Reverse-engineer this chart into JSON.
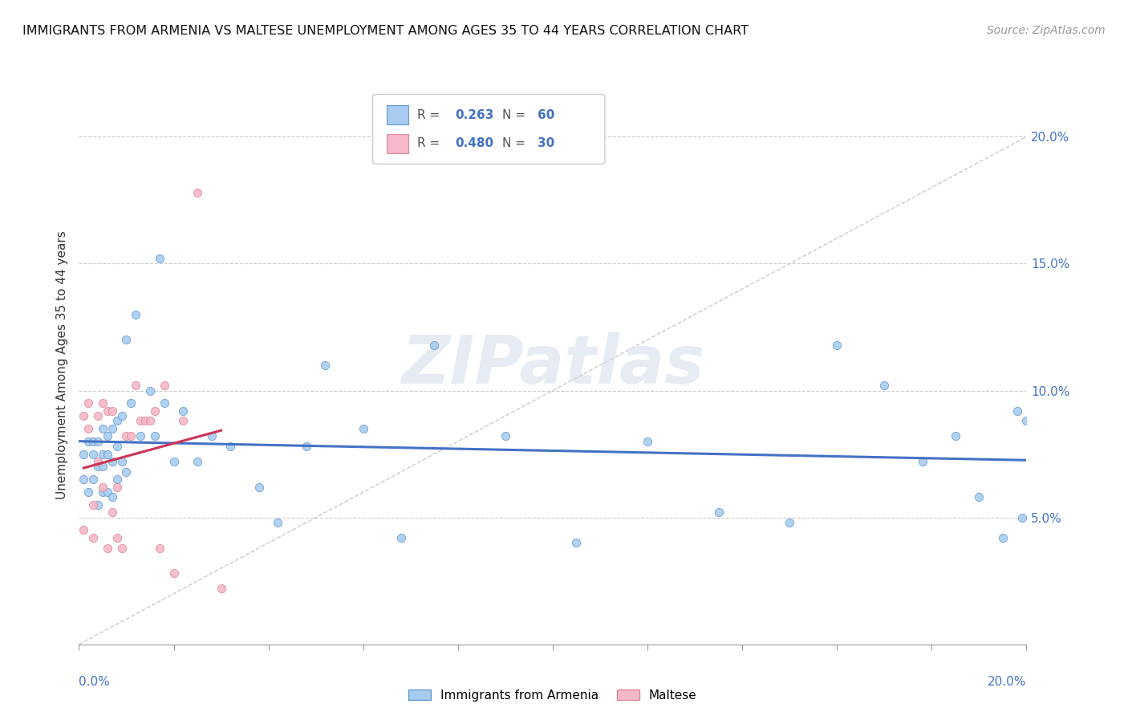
{
  "title": "IMMIGRANTS FROM ARMENIA VS MALTESE UNEMPLOYMENT AMONG AGES 35 TO 44 YEARS CORRELATION CHART",
  "source": "Source: ZipAtlas.com",
  "ylabel": "Unemployment Among Ages 35 to 44 years",
  "xlim": [
    0.0,
    0.2
  ],
  "ylim": [
    0.0,
    0.22
  ],
  "yticks": [
    0.05,
    0.1,
    0.15,
    0.2
  ],
  "ytick_labels": [
    "5.0%",
    "10.0%",
    "15.0%",
    "20.0%"
  ],
  "xticks": [
    0.0,
    0.02,
    0.04,
    0.06,
    0.08,
    0.1,
    0.12,
    0.14,
    0.16,
    0.18,
    0.2
  ],
  "color_armenia": "#A8CCF0",
  "color_maltese": "#F5B8C8",
  "color_armenia_edge": "#6699CC",
  "color_maltese_edge": "#DD8899",
  "color_diag": "#CCCCCC",
  "color_trend_armenia": "#4472C4",
  "color_trend_maltese": "#CC3355",
  "watermark": "ZIPatlas",
  "armenia_x": [
    0.001,
    0.001,
    0.002,
    0.002,
    0.003,
    0.003,
    0.003,
    0.004,
    0.004,
    0.004,
    0.005,
    0.005,
    0.005,
    0.005,
    0.006,
    0.006,
    0.006,
    0.007,
    0.007,
    0.007,
    0.008,
    0.008,
    0.008,
    0.009,
    0.009,
    0.01,
    0.01,
    0.011,
    0.012,
    0.013,
    0.015,
    0.016,
    0.017,
    0.018,
    0.02,
    0.022,
    0.025,
    0.028,
    0.032,
    0.038,
    0.042,
    0.048,
    0.052,
    0.06,
    0.068,
    0.075,
    0.09,
    0.105,
    0.12,
    0.135,
    0.15,
    0.16,
    0.17,
    0.178,
    0.185,
    0.19,
    0.195,
    0.198,
    0.199,
    0.2
  ],
  "armenia_y": [
    0.065,
    0.075,
    0.06,
    0.08,
    0.065,
    0.075,
    0.08,
    0.055,
    0.07,
    0.08,
    0.06,
    0.07,
    0.075,
    0.085,
    0.06,
    0.075,
    0.082,
    0.058,
    0.072,
    0.085,
    0.065,
    0.078,
    0.088,
    0.072,
    0.09,
    0.068,
    0.12,
    0.095,
    0.13,
    0.082,
    0.1,
    0.082,
    0.152,
    0.095,
    0.072,
    0.092,
    0.072,
    0.082,
    0.078,
    0.062,
    0.048,
    0.078,
    0.11,
    0.085,
    0.042,
    0.118,
    0.082,
    0.04,
    0.08,
    0.052,
    0.048,
    0.118,
    0.102,
    0.072,
    0.082,
    0.058,
    0.042,
    0.092,
    0.05,
    0.088
  ],
  "maltese_x": [
    0.001,
    0.001,
    0.002,
    0.002,
    0.003,
    0.003,
    0.004,
    0.004,
    0.005,
    0.005,
    0.006,
    0.006,
    0.007,
    0.007,
    0.008,
    0.008,
    0.009,
    0.01,
    0.011,
    0.012,
    0.013,
    0.014,
    0.015,
    0.016,
    0.017,
    0.018,
    0.02,
    0.022,
    0.025,
    0.03
  ],
  "maltese_y": [
    0.045,
    0.09,
    0.085,
    0.095,
    0.042,
    0.055,
    0.072,
    0.09,
    0.062,
    0.095,
    0.092,
    0.038,
    0.052,
    0.092,
    0.042,
    0.062,
    0.038,
    0.082,
    0.082,
    0.102,
    0.088,
    0.088,
    0.088,
    0.092,
    0.038,
    0.102,
    0.028,
    0.088,
    0.178,
    0.022
  ]
}
